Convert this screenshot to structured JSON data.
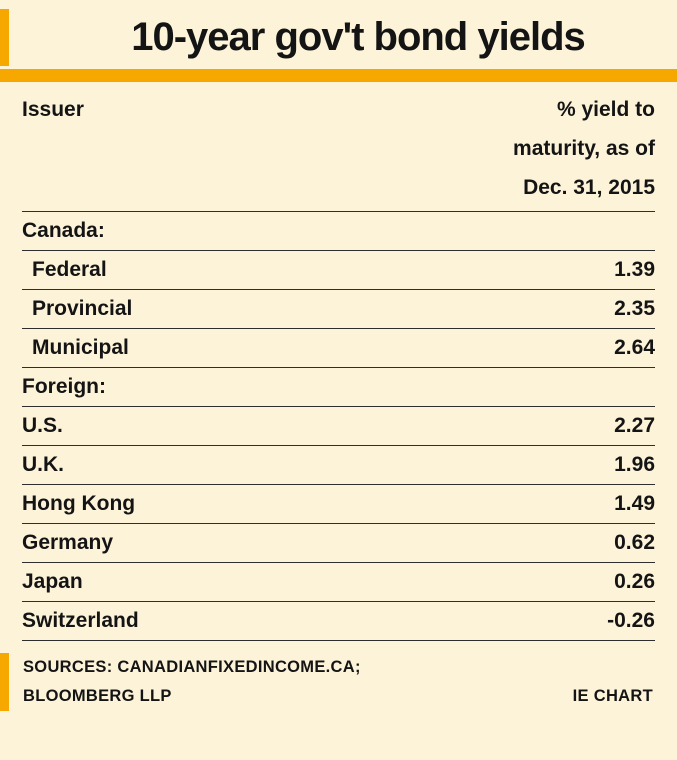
{
  "colors": {
    "background": "#FCF3D9",
    "accent_orange": "#F6A800",
    "text": "#141414",
    "rule": "#2e2e2e"
  },
  "title": "10-year gov't bond yields",
  "table": {
    "header": {
      "issuer": "Issuer",
      "yield_line1": "% yield to",
      "yield_line2": "maturity, as of",
      "yield_line3": "Dec. 31, 2015"
    },
    "rows": [
      {
        "label": "Canada:",
        "value": "",
        "style": "section"
      },
      {
        "label": "Federal",
        "value": "1.39",
        "style": "sub"
      },
      {
        "label": "Provincial",
        "value": "2.35",
        "style": "sub"
      },
      {
        "label": "Municipal",
        "value": "2.64",
        "style": "sub"
      },
      {
        "label": "Foreign:",
        "value": "",
        "style": "section"
      },
      {
        "label": "U.S.",
        "value": "2.27",
        "style": "main"
      },
      {
        "label": "U.K.",
        "value": "1.96",
        "style": "main"
      },
      {
        "label": "Hong Kong",
        "value": "1.49",
        "style": "main"
      },
      {
        "label": "Germany",
        "value": "0.62",
        "style": "main"
      },
      {
        "label": "Japan",
        "value": "0.26",
        "style": "main"
      },
      {
        "label": "Switzerland",
        "value": "-0.26",
        "style": "main"
      }
    ]
  },
  "footer": {
    "sources_line1": "SOURCES: CANADIANFIXEDINCOME.CA;",
    "sources_line2": "BLOOMBERG LLP",
    "credit": "IE CHART"
  },
  "chart_data": {
    "type": "table",
    "title": "10-year gov't bond yields",
    "columns": [
      "Issuer",
      "% yield to maturity, as of Dec. 31, 2015"
    ],
    "groups": [
      {
        "group": "Canada:",
        "rows": [
          {
            "issuer": "Federal",
            "yield_pct": 1.39
          },
          {
            "issuer": "Provincial",
            "yield_pct": 2.35
          },
          {
            "issuer": "Municipal",
            "yield_pct": 2.64
          }
        ]
      },
      {
        "group": "Foreign:",
        "rows": [
          {
            "issuer": "U.S.",
            "yield_pct": 2.27
          },
          {
            "issuer": "U.K.",
            "yield_pct": 1.96
          },
          {
            "issuer": "Hong Kong",
            "yield_pct": 1.49
          },
          {
            "issuer": "Germany",
            "yield_pct": 0.62
          },
          {
            "issuer": "Japan",
            "yield_pct": 0.26
          },
          {
            "issuer": "Switzerland",
            "yield_pct": -0.26
          }
        ]
      }
    ],
    "sources": "SOURCES: CANADIANFIXEDINCOME.CA; BLOOMBERG LLP",
    "credit": "IE CHART"
  }
}
